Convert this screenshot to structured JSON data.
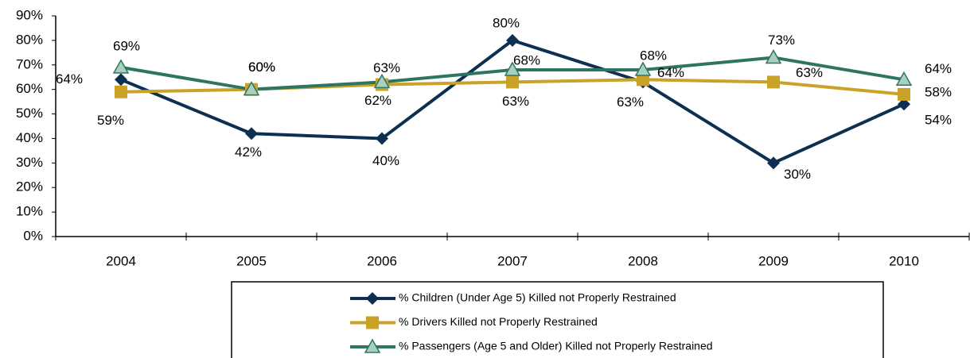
{
  "chart_data": {
    "type": "line",
    "categories": [
      "2004",
      "2005",
      "2006",
      "2007",
      "2008",
      "2009",
      "2010"
    ],
    "series": [
      {
        "name": "% Children (Under Age 5) Killed not Properly Restrained",
        "color": "#0d2f52",
        "marker": "diamond",
        "values": [
          64,
          42,
          40,
          80,
          63,
          30,
          54
        ],
        "value_labels": [
          "64%",
          "42%",
          "40%",
          "80%",
          "63%",
          "30%",
          "54%"
        ]
      },
      {
        "name": "% Drivers Killed not Properly Restrained",
        "color": "#c9a227",
        "marker": "square",
        "values": [
          59,
          60,
          62,
          63,
          64,
          63,
          58
        ],
        "value_labels": [
          "59%",
          "60%",
          "62%",
          "63%",
          "64%",
          "63%",
          "58%"
        ]
      },
      {
        "name": "% Passengers (Age 5 and Older) Killed not Properly Restrained",
        "color": "#2e7561",
        "marker": "triangle",
        "values": [
          69,
          60,
          63,
          68,
          68,
          73,
          64
        ],
        "value_labels": [
          "69%",
          "60%",
          "63%",
          "68%",
          "68%",
          "73%",
          "64%"
        ]
      }
    ],
    "ylim": [
      0,
      90
    ],
    "yticks": [
      {
        "value": 0,
        "label": "0%"
      },
      {
        "value": 10,
        "label": "10%"
      },
      {
        "value": 20,
        "label": "20%"
      },
      {
        "value": 30,
        "label": "30%"
      },
      {
        "value": 40,
        "label": "40%"
      },
      {
        "value": 50,
        "label": "50%"
      },
      {
        "value": 60,
        "label": "60%"
      },
      {
        "value": 70,
        "label": "70%"
      },
      {
        "value": 80,
        "label": "80%"
      },
      {
        "value": 90,
        "label": "90%"
      }
    ],
    "legend": "bottom"
  }
}
